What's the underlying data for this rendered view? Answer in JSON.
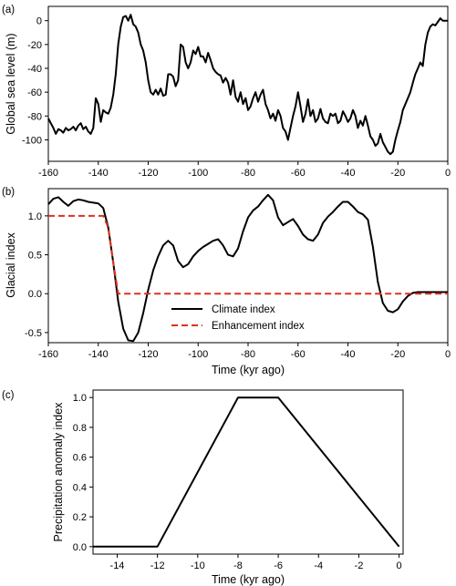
{
  "chart_data": [
    {
      "panel": "(a)",
      "type": "line",
      "xlabel": "",
      "ylabel": "Global sea level (m)",
      "xlim": [
        -160,
        0
      ],
      "ylim": [
        -118,
        12
      ],
      "xticks": [
        -160,
        -140,
        -120,
        -100,
        -80,
        -60,
        -40,
        -20,
        0
      ],
      "yticks": [
        0,
        -20,
        -40,
        -60,
        -80,
        -100
      ],
      "series": [
        {
          "color": "#000000",
          "x": [
            -160,
            -159,
            -158,
            -157,
            -156,
            -155,
            -154,
            -153,
            -152,
            -151,
            -150,
            -149,
            -148,
            -147,
            -146,
            -145,
            -144,
            -143,
            -142,
            -141,
            -140,
            -139,
            -138,
            -137,
            -136,
            -135,
            -134,
            -133,
            -132,
            -131,
            -130,
            -129,
            -128,
            -127,
            -126,
            -125,
            -124,
            -123,
            -122,
            -121,
            -120,
            -119,
            -118,
            -117,
            -116,
            -115,
            -114,
            -113,
            -112,
            -111,
            -110,
            -109,
            -108,
            -107,
            -106,
            -105,
            -104,
            -103,
            -102,
            -101,
            -100,
            -99,
            -98,
            -97,
            -96,
            -95,
            -94,
            -93,
            -92,
            -91,
            -90,
            -89,
            -88,
            -87,
            -86,
            -85,
            -84,
            -83,
            -82,
            -81,
            -80,
            -79,
            -78,
            -77,
            -76,
            -75,
            -74,
            -73,
            -72,
            -71,
            -70,
            -69,
            -68,
            -67,
            -66,
            -65,
            -64,
            -63,
            -62,
            -61,
            -60,
            -59,
            -58,
            -57,
            -56,
            -55,
            -54,
            -53,
            -52,
            -51,
            -50,
            -49,
            -48,
            -47,
            -46,
            -45,
            -44,
            -43,
            -42,
            -41,
            -40,
            -39,
            -38,
            -37,
            -36,
            -35,
            -34,
            -33,
            -32,
            -31,
            -30,
            -29,
            -28,
            -27,
            -26,
            -25,
            -24,
            -23,
            -22,
            -21,
            -20,
            -19,
            -18,
            -17,
            -16,
            -15,
            -14,
            -13,
            -12,
            -11,
            -10,
            -9,
            -8,
            -7,
            -6,
            -5,
            -4,
            -3,
            -2,
            -1,
            0
          ],
          "y": [
            -82,
            -86,
            -90,
            -95,
            -91,
            -92,
            -94,
            -90,
            -92,
            -91,
            -89,
            -92,
            -88,
            -86,
            -91,
            -89,
            -93,
            -95,
            -90,
            -65,
            -70,
            -85,
            -75,
            -77,
            -78,
            -73,
            -62,
            -45,
            -20,
            -5,
            3,
            4,
            0,
            5,
            -3,
            -5,
            -10,
            -20,
            -25,
            -35,
            -50,
            -60,
            -62,
            -58,
            -62,
            -57,
            -63,
            -62,
            -45,
            -45,
            -47,
            -55,
            -50,
            -20,
            -22,
            -35,
            -40,
            -35,
            -25,
            -28,
            -22,
            -30,
            -30,
            -35,
            -27,
            -33,
            -40,
            -43,
            -45,
            -46,
            -52,
            -48,
            -52,
            -62,
            -50,
            -64,
            -68,
            -60,
            -70,
            -65,
            -75,
            -72,
            -65,
            -60,
            -68,
            -62,
            -58,
            -70,
            -75,
            -82,
            -78,
            -84,
            -75,
            -80,
            -90,
            -93,
            -100,
            -90,
            -80,
            -72,
            -60,
            -72,
            -85,
            -78,
            -66,
            -80,
            -75,
            -85,
            -82,
            -74,
            -82,
            -85,
            -86,
            -78,
            -80,
            -78,
            -86,
            -84,
            -76,
            -80,
            -85,
            -82,
            -75,
            -80,
            -90,
            -84,
            -88,
            -80,
            -88,
            -97,
            -100,
            -105,
            -103,
            -95,
            -102,
            -106,
            -110,
            -112,
            -110,
            -100,
            -92,
            -85,
            -75,
            -70,
            -65,
            -60,
            -52,
            -45,
            -40,
            -35,
            -38,
            -20,
            -10,
            -5,
            -3,
            -4,
            -1,
            2,
            0,
            0,
            0
          ]
        }
      ]
    },
    {
      "panel": "(b)",
      "type": "line",
      "xlabel": "Time (kyr ago)",
      "ylabel": "Glacial index",
      "xlim": [
        -160,
        0
      ],
      "ylim": [
        -0.63,
        1.35
      ],
      "xticks": [
        -160,
        -140,
        -120,
        -100,
        -80,
        -60,
        -40,
        -20,
        0
      ],
      "yticks": [
        1.0,
        0.5,
        0.0,
        -0.5
      ],
      "legend": {
        "location": "lower center"
      },
      "series": [
        {
          "name": "Climate index",
          "color": "#000000",
          "style": "solid",
          "x": [
            -160,
            -158,
            -156,
            -154,
            -152,
            -150,
            -148,
            -146,
            -144,
            -142,
            -140,
            -138,
            -136,
            -134,
            -132,
            -130,
            -128,
            -126,
            -124,
            -122,
            -120,
            -118,
            -116,
            -114,
            -112,
            -110,
            -108,
            -106,
            -104,
            -102,
            -100,
            -98,
            -96,
            -94,
            -92,
            -90,
            -88,
            -86,
            -84,
            -82,
            -80,
            -78,
            -76,
            -74,
            -72,
            -70,
            -68,
            -66,
            -64,
            -62,
            -60,
            -58,
            -56,
            -54,
            -52,
            -50,
            -48,
            -46,
            -44,
            -42,
            -40,
            -38,
            -36,
            -34,
            -32,
            -30,
            -28,
            -26,
            -24,
            -22,
            -20,
            -18,
            -16,
            -14,
            -12,
            -10,
            -8,
            -6,
            -4,
            -2,
            0
          ],
          "y": [
            1.15,
            1.22,
            1.24,
            1.18,
            1.13,
            1.19,
            1.21,
            1.2,
            1.18,
            1.17,
            1.16,
            1.1,
            0.85,
            0.4,
            -0.1,
            -0.45,
            -0.6,
            -0.61,
            -0.5,
            -0.25,
            0.05,
            0.3,
            0.48,
            0.62,
            0.68,
            0.62,
            0.42,
            0.34,
            0.38,
            0.48,
            0.55,
            0.6,
            0.64,
            0.68,
            0.7,
            0.62,
            0.5,
            0.48,
            0.58,
            0.8,
            0.98,
            1.07,
            1.12,
            1.2,
            1.27,
            1.2,
            0.98,
            0.88,
            0.92,
            0.96,
            0.87,
            0.76,
            0.7,
            0.68,
            0.76,
            0.91,
            0.99,
            1.05,
            1.12,
            1.18,
            1.18,
            1.12,
            1.05,
            1.02,
            0.95,
            0.6,
            0.15,
            -0.12,
            -0.22,
            -0.24,
            -0.2,
            -0.1,
            -0.03,
            0.01,
            0.02,
            0.02,
            0.02,
            0.02,
            0.02,
            0.02,
            0.02
          ]
        },
        {
          "name": "Enhancement index",
          "color": "#e0301e",
          "style": "dashed",
          "x": [
            -160,
            -140,
            -138,
            -136,
            -134,
            -132,
            -130,
            -128,
            -126,
            -124,
            -122,
            -120,
            -118,
            -116,
            -114,
            -112,
            -110,
            -108,
            -106,
            -104,
            -102,
            -100,
            -98,
            -96,
            -94,
            -92,
            -90,
            -88,
            -86,
            -84,
            -82,
            -80,
            -78,
            -76,
            -74,
            -72,
            -70,
            -68,
            -66,
            -64,
            -62,
            -60,
            -58,
            -56,
            -54,
            -52,
            -50,
            -48,
            -46,
            -44,
            -42,
            -40,
            -38,
            -36,
            -34,
            -32,
            -30,
            -28,
            -26,
            -24,
            -22,
            -20,
            -18,
            -16,
            -14,
            -12,
            -10,
            -8,
            -6,
            -4,
            -2,
            0
          ],
          "y": [
            1.0,
            1.0,
            1.0,
            0.85,
            0.4,
            0.0,
            0.0,
            0.0,
            0.0,
            0.0,
            0.0,
            0.0,
            0.0,
            0.0,
            0.0,
            0.0,
            0.0,
            0.0,
            0.0,
            0.0,
            0.0,
            0.0,
            0.0,
            0.0,
            0.0,
            0.0,
            0.0,
            0.0,
            0.0,
            0.0,
            0.0,
            0.0,
            0.0,
            0.0,
            0.0,
            0.0,
            0.0,
            0.0,
            0.0,
            0.0,
            0.0,
            0.0,
            0.0,
            0.0,
            0.0,
            0.0,
            0.0,
            0.0,
            0.0,
            0.0,
            0.0,
            0.0,
            0.0,
            0.0,
            0.0,
            0.0,
            0.0,
            0.0,
            0.0,
            0.0,
            0.0,
            0.0,
            0.0,
            0.0,
            0.0,
            0.0,
            0.0,
            0.0,
            0.0,
            0.0,
            0.0,
            0.0
          ]
        }
      ]
    },
    {
      "panel": "(c)",
      "type": "line",
      "xlabel": "Time (kyr ago)",
      "ylabel": "Precipitation anomaly index",
      "xlim": [
        -15.2,
        0.2
      ],
      "ylim": [
        -0.05,
        1.05
      ],
      "xticks": [
        -14,
        -12,
        -10,
        -8,
        -6,
        -4,
        -2,
        0
      ],
      "yticks": [
        0.0,
        0.2,
        0.4,
        0.6,
        0.8,
        1.0
      ],
      "series": [
        {
          "color": "#000000",
          "x": [
            -15.2,
            -12,
            -8,
            -6,
            0
          ],
          "y": [
            0,
            0,
            1,
            1,
            0
          ]
        }
      ]
    }
  ]
}
